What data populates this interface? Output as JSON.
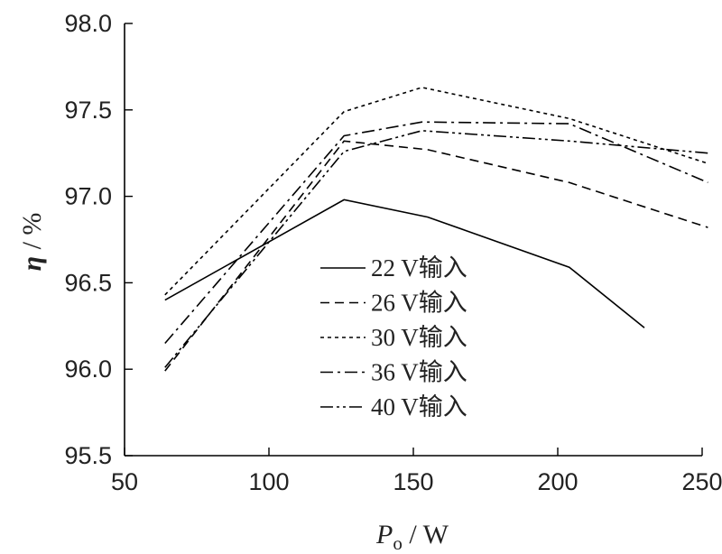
{
  "chart_data": {
    "type": "line",
    "xlabel_symbol": "P",
    "xlabel_subscript": "o",
    "xlabel_unit": " / W",
    "ylabel_symbol": "η",
    "ylabel_unit": " / %",
    "xlim": [
      50,
      250
    ],
    "ylim": [
      95.5,
      98.0
    ],
    "xticks": [
      50,
      100,
      150,
      200,
      250
    ],
    "xtick_labels": [
      "50",
      "100",
      "150",
      "200",
      "250"
    ],
    "yticks": [
      95.5,
      96.0,
      96.5,
      97.0,
      97.5,
      98.0
    ],
    "ytick_labels": [
      "95.5",
      "96.0",
      "96.5",
      "97.0",
      "97.5",
      "98.0"
    ],
    "legend_position": "center",
    "grid": false,
    "series": [
      {
        "name": "22 V输入",
        "dash": "solid",
        "x": [
          64,
          126,
          155,
          204,
          230
        ],
        "y": [
          96.4,
          96.98,
          96.88,
          96.59,
          96.24
        ]
      },
      {
        "name": "26 V输入",
        "dash": "dashed",
        "x": [
          64,
          126,
          155,
          204,
          252
        ],
        "y": [
          95.99,
          97.32,
          97.27,
          97.08,
          96.82
        ]
      },
      {
        "name": "30 V输入",
        "dash": "dotted",
        "x": [
          64,
          126,
          153,
          204,
          252
        ],
        "y": [
          96.43,
          97.49,
          97.63,
          97.45,
          97.19
        ]
      },
      {
        "name": "36 V输入",
        "dash": "dashdot",
        "x": [
          64,
          126,
          153,
          204,
          252
        ],
        "y": [
          96.15,
          97.35,
          97.43,
          97.42,
          97.08
        ]
      },
      {
        "name": "40 V输入",
        "dash": "dashdotdot",
        "x": [
          64,
          126,
          153,
          204,
          252
        ],
        "y": [
          96.01,
          97.26,
          97.38,
          97.32,
          97.25
        ]
      }
    ]
  }
}
